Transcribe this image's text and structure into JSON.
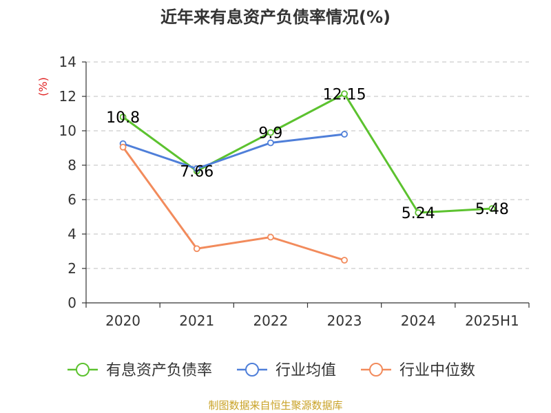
{
  "chart_data": {
    "type": "line",
    "title": "近年来有息资产负债率情况(%)",
    "ylabel": "(%)",
    "xlabel": "",
    "categories": [
      "2020",
      "2021",
      "2022",
      "2023",
      "2024",
      "2025H1"
    ],
    "ylim": [
      0,
      14
    ],
    "yticks": [
      0,
      2,
      4,
      6,
      8,
      10,
      12,
      14
    ],
    "grid": true,
    "legend_position": "bottom",
    "series": [
      {
        "name": "有息资产负债率",
        "color": "#5cc22f",
        "values": [
          10.8,
          7.66,
          9.9,
          12.15,
          5.24,
          5.48
        ],
        "labels": [
          "10.8",
          "7.66",
          "9.9",
          "12.15",
          "5.24",
          "5.48"
        ]
      },
      {
        "name": "行业均值",
        "color": "#4f7fd9",
        "values": [
          9.25,
          7.8,
          9.3,
          9.8,
          null,
          null
        ]
      },
      {
        "name": "行业中位数",
        "color": "#f28b5c",
        "values": [
          9.05,
          3.15,
          3.82,
          2.48,
          null,
          null
        ]
      }
    ],
    "source": "制图数据来自恒生聚源数据库"
  }
}
